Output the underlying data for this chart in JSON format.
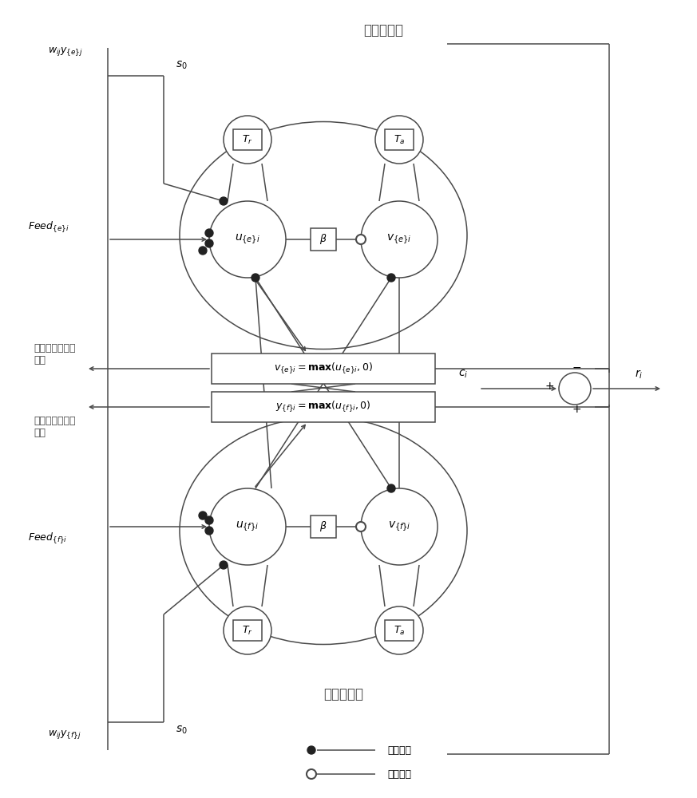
{
  "bg_color": "#ffffff",
  "line_color": "#4a4a4a",
  "title_top": "伸肌神经元",
  "title_bottom": "屈肌神经元",
  "label_wij_top": "$w_{ij}y_{\\{e\\}j}$",
  "label_s0_top": "$s_0$",
  "label_wij_bot": "$w_{ij}y_{\\{f\\}j}$",
  "label_s0_bot": "$s_0$",
  "label_feed_top": "$Feed_{\\{e\\}i}$",
  "label_feed_bottom": "$Feed_{\\{f\\}i}$",
  "label_u_top": "$u_{\\{e\\}i}$",
  "label_v_top": "$v_{\\{e\\}i}$",
  "label_u_bot": "$u_{\\{f\\}i}$",
  "label_v_bot": "$v_{\\{f\\}i}$",
  "label_Tr_top": "$T_r$",
  "label_Ta_top": "$T_a$",
  "label_Tr_bot": "$T_r$",
  "label_Ta_bot": "$T_a$",
  "label_beta_top": "$\\beta$",
  "label_beta_bot": "$\\beta$",
  "label_eq_top": "$v_{\\{e\\}i} = \\mathbf{max}(u_{\\{e\\}i}, 0)$",
  "label_eq_bot": "$y_{\\{f\\}i} = \\mathbf{max}(u_{\\{f\\}i}, 0)$",
  "label_ci": "$c_i$",
  "label_ri": "$r_i$",
  "label_connect_ext": "连接其他伸肌神\n经元",
  "label_connect_flex": "连接其他屈肌神\n经元",
  "legend_inhibit": "抑制连接",
  "legend_excite": "兴奋连接",
  "plus_top": "+",
  "minus_top": "−",
  "plus_bot": "+"
}
